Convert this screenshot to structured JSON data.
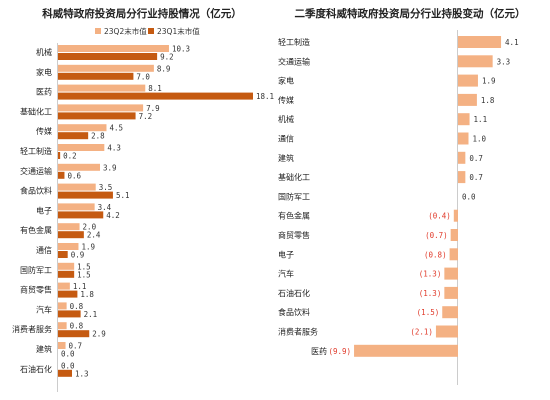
{
  "chart_data": [
    {
      "type": "bar",
      "orientation": "horizontal",
      "title": "科威特政府投资局分行业持股情况（亿元）",
      "categories": [
        "机械",
        "家电",
        "医药",
        "基础化工",
        "传媒",
        "轻工制造",
        "交通运输",
        "食品饮料",
        "电子",
        "有色金属",
        "通信",
        "国防军工",
        "商贸零售",
        "汽车",
        "消费者服务",
        "建筑",
        "石油石化"
      ],
      "series": [
        {
          "name": "23Q2末市值",
          "color": "#f4b183",
          "values": [
            10.3,
            8.9,
            8.1,
            7.9,
            4.5,
            4.3,
            3.9,
            3.5,
            3.4,
            2.0,
            1.9,
            1.5,
            1.1,
            0.8,
            0.8,
            0.7,
            0.0
          ]
        },
        {
          "name": "23Q1末市值",
          "color": "#c55a11",
          "values": [
            9.2,
            7.0,
            18.1,
            7.2,
            2.8,
            0.2,
            0.6,
            5.1,
            4.2,
            2.4,
            0.9,
            1.5,
            1.8,
            2.1,
            2.9,
            0.0,
            1.3
          ]
        }
      ],
      "value_labels": {
        "q2": [
          "10.3",
          "8.9",
          "8.1",
          "7.9",
          "4.5",
          "4.3",
          "3.9",
          "3.5",
          "3.4",
          "2.0",
          "1.9",
          "1.5",
          "1.1",
          "0.8",
          "0.8",
          "0.7",
          "0.0"
        ],
        "q1": [
          "9.2",
          "7.0",
          "18.1",
          "7.2",
          "2.8",
          "0.2",
          "0.6",
          "5.1",
          "4.2",
          "2.4",
          "0.9",
          "1.5",
          "1.8",
          "2.1",
          "2.9",
          "0.0",
          "1.3"
        ]
      },
      "xlim": [
        0,
        18.1
      ],
      "legend_position": "top"
    },
    {
      "type": "bar",
      "orientation": "horizontal",
      "title": "二季度科威特政府投资局分行业持股变动（亿元）",
      "categories": [
        "轻工制造",
        "交通运输",
        "家电",
        "传媒",
        "机械",
        "通信",
        "建筑",
        "基础化工",
        "国防军工",
        "有色金属",
        "商贸零售",
        "电子",
        "汽车",
        "石油石化",
        "食品饮料",
        "消费者服务",
        "医药"
      ],
      "values": [
        4.1,
        3.3,
        1.9,
        1.8,
        1.1,
        1.0,
        0.7,
        0.7,
        0.0,
        -0.4,
        -0.7,
        -0.8,
        -1.3,
        -1.3,
        -1.5,
        -2.1,
        -9.9
      ],
      "value_labels": [
        "4.1",
        "3.3",
        "1.9",
        "1.8",
        "1.1",
        "1.0",
        "0.7",
        "0.7",
        "0.0",
        "(0.4)",
        "(0.7)",
        "(0.8)",
        "(1.3)",
        "(1.3)",
        "(1.5)",
        "(2.1)",
        "(9.9)"
      ],
      "color": "#f4b183",
      "negative_label_color": "#e03a2a",
      "xlim": [
        -9.9,
        4.1
      ]
    }
  ]
}
